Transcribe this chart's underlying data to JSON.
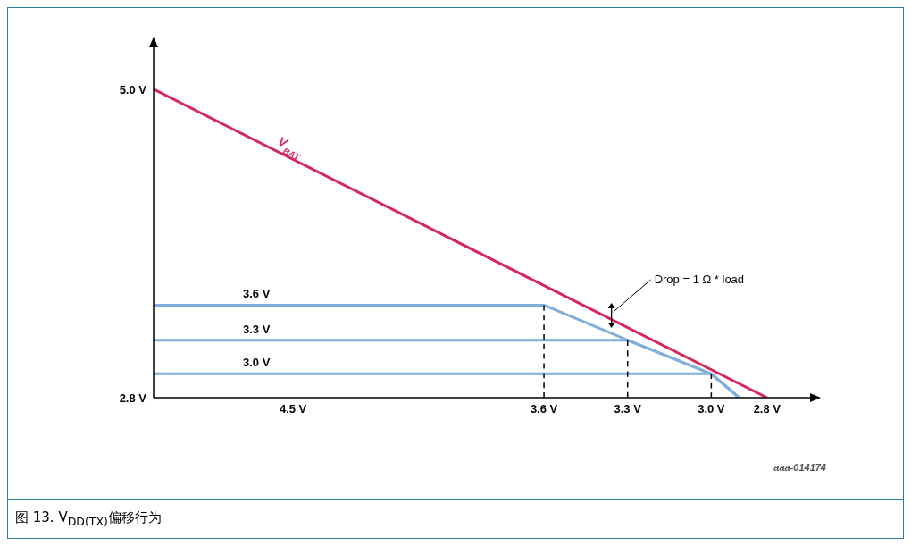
{
  "chart_data": {
    "type": "line",
    "title": "图 13. V$_{DD(TX)}$偏移行为",
    "annotations": [
      "Drop = 1 Ω * load",
      "aaa-014174"
    ],
    "xlim": [
      5.0,
      2.62
    ],
    "xticks": [
      {
        "value": 4.5,
        "label": "4.5 V"
      },
      {
        "value": 3.6,
        "label": "3.6 V"
      },
      {
        "value": 3.3,
        "label": "3.3 V"
      },
      {
        "value": 3.0,
        "label": "3.0 V"
      },
      {
        "value": 2.8,
        "label": "2.8 V"
      }
    ],
    "ylim": [
      2.8,
      5.35
    ],
    "yticks": [
      {
        "value": 2.8,
        "label": "2.8 V"
      },
      {
        "value": 5.0,
        "label": "5.0 V"
      }
    ],
    "series": [
      {
        "name": "V$_{BAT}$",
        "color": "#d7265e",
        "x": [
          5.0,
          2.8
        ],
        "values": [
          5.0,
          2.8
        ]
      },
      {
        "name": "3.6 V",
        "color": "#7fb0dc",
        "x": [
          5.0,
          3.6,
          3.3,
          3.0,
          2.9
        ],
        "values": [
          3.46,
          3.46,
          3.21,
          2.97,
          2.8
        ]
      },
      {
        "name": "3.3 V",
        "color": "#7fb0dc",
        "x": [
          5.0,
          3.3,
          3.0,
          2.9
        ],
        "values": [
          3.21,
          3.21,
          2.97,
          2.8
        ]
      },
      {
        "name": "3.0 V",
        "color": "#7fb0dc",
        "x": [
          5.0,
          3.0,
          2.9
        ],
        "values": [
          2.97,
          2.97,
          2.8
        ]
      },
      {
        "color": "#000000",
        "line_style": "dashed",
        "x": [
          3.6,
          3.6
        ],
        "values": [
          2.8,
          3.46
        ]
      },
      {
        "color": "#000000",
        "line_style": "dashed",
        "x": [
          3.3,
          3.3
        ],
        "values": [
          2.8,
          3.21
        ]
      },
      {
        "color": "#000000",
        "line_style": "dashed",
        "x": [
          3.0,
          3.0
        ],
        "values": [
          2.8,
          2.97
        ]
      }
    ]
  }
}
